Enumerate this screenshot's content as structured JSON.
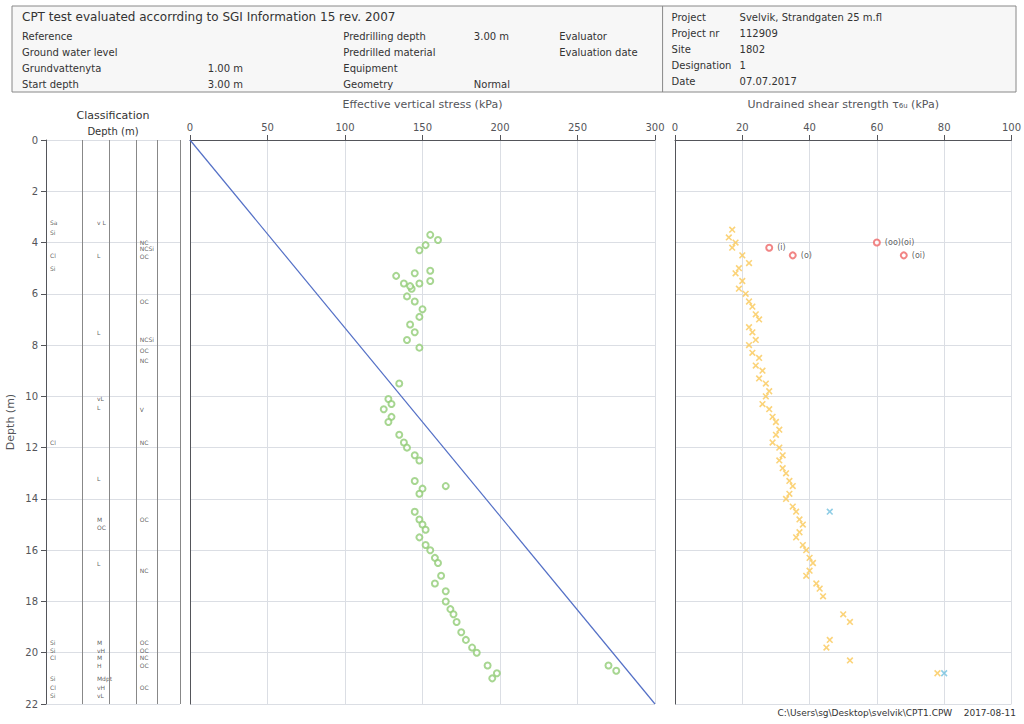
{
  "chart_data": [
    {
      "type": "strip",
      "title": "CPT test evaluated accorrding to SGI Information 15 rev. 2007",
      "header_rows": [
        [
          {
            "label": "Reference"
          },
          {
            "label": "Predrilling depth",
            "value": "3.00 m"
          },
          {
            "label": "Evaluator"
          }
        ],
        [
          {
            "label": "Ground water level"
          },
          {
            "label": "Predrilled material"
          },
          {
            "label": "Evaluation date"
          }
        ],
        [
          {
            "label": "Grundvattenyta",
            "value": "1.00 m"
          },
          {
            "label": "Equipment"
          }
        ],
        [
          {
            "label": "Start depth",
            "value": "3.00 m"
          },
          {
            "label": "Geometry",
            "value": "Normal"
          }
        ]
      ],
      "project_info": [
        {
          "label": "Project",
          "value": "Svelvik, Strandgaten 25 m.fl"
        },
        {
          "label": "Project nr",
          "value": "112909"
        },
        {
          "label": "Site",
          "value": "1802"
        },
        {
          "label": "Designation",
          "value": "1"
        },
        {
          "label": "Date",
          "value": "07.07.2017"
        }
      ],
      "footer": "C:\\Users\\sg\\Desktop\\svelvik\\CPT1.CPW    2017-08-11",
      "label": "Classification",
      "y_label": "Depth (m)",
      "ylim": [
        22,
        0
      ],
      "yticks": [
        0,
        2,
        4,
        6,
        8,
        10,
        12,
        14,
        16,
        18,
        20,
        22
      ],
      "grid": true,
      "tick_labels": "y",
      "annotations": [
        [
          {
            "y": 3.2,
            "text": "Sa"
          },
          {
            "y": 3.6,
            "text": "Si"
          },
          {
            "y": 4.5,
            "text": "Cl"
          },
          {
            "y": 5.0,
            "text": "Si"
          },
          {
            "y": 11.8,
            "text": "Cl"
          },
          {
            "y": 19.6,
            "text": "Si"
          },
          {
            "y": 19.9,
            "text": "Si"
          },
          {
            "y": 20.2,
            "text": "Cl"
          },
          {
            "y": 21.0,
            "text": "Si"
          },
          {
            "y": 21.35,
            "text": "Cl"
          },
          {
            "y": 21.65,
            "text": "Si"
          }
        ],
        [
          {
            "y": 3.2,
            "text": "v L"
          },
          {
            "y": 4.5,
            "text": "L"
          },
          {
            "y": 7.5,
            "text": "L"
          },
          {
            "y": 10.1,
            "text": "vL"
          },
          {
            "y": 10.45,
            "text": "L"
          },
          {
            "y": 13.2,
            "text": "L"
          },
          {
            "y": 14.8,
            "text": "M"
          },
          {
            "y": 15.1,
            "text": "OC"
          },
          {
            "y": 16.5,
            "text": "L"
          },
          {
            "y": 19.6,
            "text": "M"
          },
          {
            "y": 19.9,
            "text": "vH"
          },
          {
            "y": 20.2,
            "text": "M"
          },
          {
            "y": 20.5,
            "text": "H"
          },
          {
            "y": 21.0,
            "text": "Mdpt"
          },
          {
            "y": 21.35,
            "text": "vH"
          },
          {
            "y": 21.65,
            "text": "vL"
          }
        ],
        [
          {
            "y": 4.0,
            "text": "NC"
          },
          {
            "y": 4.25,
            "text": "NCSi"
          },
          {
            "y": 4.55,
            "text": "OC"
          },
          {
            "y": 6.3,
            "text": "OC"
          },
          {
            "y": 7.8,
            "text": "NCSi"
          },
          {
            "y": 8.2,
            "text": "OC"
          },
          {
            "y": 8.6,
            "text": "NC"
          },
          {
            "y": 10.5,
            "text": "V"
          },
          {
            "y": 11.8,
            "text": "NC"
          },
          {
            "y": 14.8,
            "text": "OC"
          },
          {
            "y": 16.8,
            "text": "NC"
          },
          {
            "y": 19.6,
            "text": "OC"
          },
          {
            "y": 19.9,
            "text": "OC"
          },
          {
            "y": 20.2,
            "text": "NC"
          },
          {
            "y": 20.5,
            "text": "OC"
          },
          {
            "y": 21.35,
            "text": "OC"
          }
        ]
      ]
    },
    {
      "type": "scatter",
      "x_label": "Effective vertical stress (kPa)",
      "xlim": [
        0,
        300
      ],
      "xticks": [
        0,
        50,
        100,
        150,
        200,
        250,
        300
      ],
      "ylim": [
        22,
        0
      ],
      "yticks": [
        0,
        2,
        4,
        6,
        8,
        10,
        12,
        14,
        16,
        18,
        20,
        22
      ],
      "grid": true,
      "tick_labels": "x",
      "series": [
        {
          "type": "line",
          "x": [
            0,
            300
          ],
          "values": [
            0,
            22
          ]
        },
        {
          "type": "scatter",
          "marker": "circle",
          "x": [
            155,
            160,
            152,
            148,
            133,
            138,
            155,
            143,
            145,
            148,
            142,
            155,
            140,
            145,
            150,
            148,
            142,
            145,
            140,
            148,
            135,
            128,
            130,
            125,
            130,
            128,
            135,
            138,
            140,
            145,
            148,
            145,
            150,
            148,
            165,
            145,
            148,
            150,
            152,
            148,
            152,
            155,
            158,
            160,
            162,
            158,
            165,
            165,
            168,
            170,
            172,
            175,
            178,
            182,
            185,
            192,
            198,
            195,
            270,
            275
          ],
          "values": [
            3.7,
            3.9,
            4.1,
            4.3,
            5.3,
            5.6,
            5.1,
            5.8,
            5.2,
            5.6,
            5.7,
            5.5,
            6.1,
            6.3,
            6.6,
            6.9,
            7.2,
            7.5,
            7.8,
            8.1,
            9.5,
            10.1,
            10.3,
            10.5,
            10.8,
            11.0,
            11.5,
            11.8,
            12.0,
            12.3,
            12.5,
            13.3,
            13.6,
            13.8,
            13.5,
            14.5,
            14.8,
            15.0,
            15.2,
            15.5,
            15.8,
            16.0,
            16.3,
            16.5,
            17.0,
            17.3,
            17.6,
            18.0,
            18.3,
            18.5,
            18.8,
            19.2,
            19.5,
            19.8,
            20.0,
            20.5,
            20.8,
            21.0,
            20.5,
            20.7
          ]
        }
      ]
    },
    {
      "type": "scatter",
      "x_label": "Undrained shear strength τ₆ᵤ (kPa)",
      "xlim": [
        0,
        100
      ],
      "xticks": [
        0,
        20,
        40,
        60,
        80,
        100
      ],
      "ylim": [
        22,
        0
      ],
      "yticks": [
        0,
        2,
        4,
        6,
        8,
        10,
        12,
        14,
        16,
        18,
        20,
        22
      ],
      "grid": true,
      "tick_labels": "x",
      "series": [
        {
          "type": "scatter",
          "marker": "x",
          "x": [
            17,
            16,
            18,
            17,
            20,
            22,
            19,
            18,
            20,
            19,
            21,
            22,
            23,
            24,
            25,
            22,
            23,
            24,
            22,
            23,
            25,
            24,
            26,
            25,
            27,
            28,
            27,
            26,
            28,
            29,
            30,
            31,
            30,
            29,
            31,
            32,
            31,
            32,
            33,
            34,
            35,
            34,
            33,
            35,
            36,
            37,
            38,
            37,
            36,
            38,
            39,
            40,
            41,
            40,
            39,
            42,
            43,
            44,
            50,
            52,
            46,
            45,
            52,
            78
          ],
          "values": [
            3.5,
            3.8,
            4.0,
            4.2,
            4.5,
            4.8,
            5.0,
            5.2,
            5.5,
            5.8,
            6.0,
            6.3,
            6.5,
            6.8,
            7.0,
            7.3,
            7.5,
            7.8,
            8.0,
            8.3,
            8.5,
            8.8,
            9.0,
            9.3,
            9.5,
            9.8,
            10.0,
            10.3,
            10.5,
            10.8,
            11.0,
            11.3,
            11.5,
            11.8,
            12.0,
            12.3,
            12.5,
            12.8,
            13.0,
            13.3,
            13.5,
            13.8,
            14.0,
            14.3,
            14.5,
            14.8,
            15.0,
            15.3,
            15.5,
            15.8,
            16.0,
            16.3,
            16.5,
            16.8,
            17.0,
            17.3,
            17.5,
            17.8,
            18.5,
            18.8,
            19.5,
            19.8,
            20.3,
            20.8
          ]
        },
        {
          "type": "scatter",
          "marker": "circle",
          "x": [
            28,
            35,
            60,
            68
          ],
          "values": [
            4.2,
            4.5,
            4.0,
            4.5
          ],
          "labels": [
            "(i)",
            "(o)",
            "(oo)(oi)",
            "(oi)"
          ]
        },
        {
          "type": "scatter",
          "marker": "x",
          "x": [
            46,
            80
          ],
          "values": [
            14.5,
            20.8
          ]
        }
      ]
    }
  ]
}
